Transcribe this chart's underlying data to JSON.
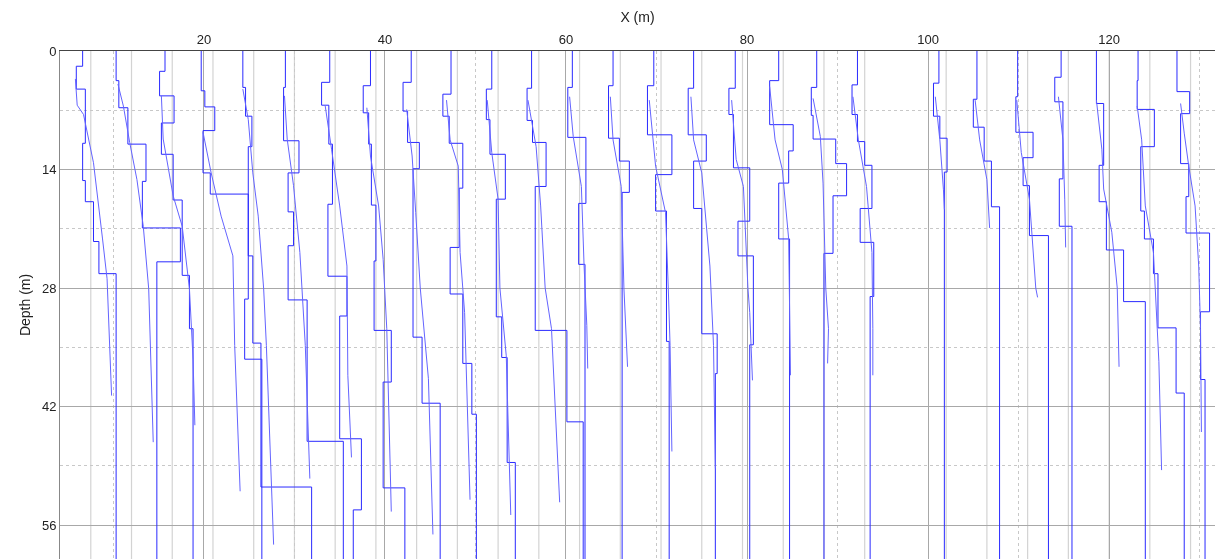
{
  "chart_data": {
    "type": "line",
    "xlabel": "X (m)",
    "ylabel": "Depth (m)",
    "xlim": [
      4.1,
      131.7
    ],
    "ylim": [
      60,
      0
    ],
    "xticks": [
      20,
      40,
      60,
      80,
      100,
      120,
      {
        "value": 10,
        "label": null
      },
      {
        "value": 30,
        "label": null
      },
      {
        "value": 50,
        "label": null
      },
      {
        "value": 70,
        "label": null
      },
      {
        "value": 90,
        "label": null
      },
      {
        "value": 110,
        "label": null
      },
      {
        "value": 130,
        "label": null
      }
    ],
    "yticks": [
      0,
      14,
      28,
      42,
      56,
      {
        "value": 7,
        "label": null
      },
      {
        "value": 21,
        "label": null
      },
      {
        "value": 35,
        "label": null
      },
      {
        "value": 49,
        "label": null
      }
    ],
    "grid": true,
    "ref_lines": [
      {
        "axis": "x",
        "value": 7.5,
        "color": "#d3d3d3"
      },
      {
        "axis": "x",
        "value": 12,
        "color": "#d3d3d3"
      },
      {
        "axis": "x",
        "value": 16.5,
        "color": "#d3d3d3"
      },
      {
        "axis": "x",
        "value": 21,
        "color": "#d3d3d3"
      },
      {
        "axis": "x",
        "value": 25.5,
        "color": "#d3d3d3"
      },
      {
        "axis": "x",
        "value": 30,
        "color": "#d3d3d3"
      },
      {
        "axis": "x",
        "value": 34.5,
        "color": "#d3d3d3"
      },
      {
        "axis": "x",
        "value": 39,
        "color": "#d3d3d3"
      },
      {
        "axis": "x",
        "value": 43.5,
        "color": "#d3d3d3"
      },
      {
        "axis": "x",
        "value": 48,
        "color": "#d3d3d3"
      },
      {
        "axis": "x",
        "value": 52.5,
        "color": "#d3d3d3"
      },
      {
        "axis": "x",
        "value": 57,
        "color": "#d3d3d3"
      },
      {
        "axis": "x",
        "value": 61.5,
        "color": "#d3d3d3"
      },
      {
        "axis": "x",
        "value": 66,
        "color": "#d3d3d3"
      },
      {
        "axis": "x",
        "value": 70.5,
        "color": "#d3d3d3"
      },
      {
        "axis": "x",
        "value": 75,
        "color": "#d3d3d3"
      },
      {
        "axis": "x",
        "value": 79.5,
        "color": "#d3d3d3"
      },
      {
        "axis": "x",
        "value": 84,
        "color": "#d3d3d3"
      },
      {
        "axis": "x",
        "value": 88.5,
        "color": "#d3d3d3"
      },
      {
        "axis": "x",
        "value": 93,
        "color": "#d3d3d3"
      },
      {
        "axis": "x",
        "value": 102,
        "color": "#d3d3d3"
      },
      {
        "axis": "x",
        "value": 106.5,
        "color": "#d3d3d3"
      },
      {
        "axis": "x",
        "value": 111,
        "color": "#d3d3d3"
      },
      {
        "axis": "x",
        "value": 115.5,
        "color": "#d3d3d3"
      },
      {
        "axis": "x",
        "value": 120,
        "color": "#d3d3d3"
      },
      {
        "axis": "x",
        "value": 124.5,
        "color": "#d3d3d3"
      },
      {
        "axis": "x",
        "value": 129,
        "color": "#d3d3d3"
      }
    ],
    "series": [
      {
        "color": "#2a2aff",
        "x": [
          6.6,
          6.6,
          5.9,
          5.9,
          6.9,
          6.9,
          6.6,
          6.6,
          6.9,
          6.9,
          7.8,
          7.8,
          8.4,
          8.4,
          10.3,
          10.3
        ],
        "values": [
          0,
          1.8,
          1.8,
          4.5,
          4.5,
          10.9,
          10.9,
          15.3,
          15.3,
          17.8,
          17.8,
          22.5,
          22.5,
          26.3,
          26.3,
          60
        ]
      },
      {
        "color": "#6464ff",
        "x": [
          5.8,
          6.0,
          6.7,
          7.8,
          8.8,
          9.3,
          9.8
        ],
        "values": [
          3.3,
          6.4,
          7.5,
          13.2,
          22.2,
          26.9,
          40.7
        ]
      },
      {
        "color": "#2a2aff",
        "x": [
          10.3,
          10.3,
          10.6,
          10.6,
          11.6,
          11.6,
          13.6,
          13.6,
          13.2,
          13.2,
          17.4,
          17.4,
          14.8,
          14.8
        ],
        "values": [
          0,
          3.5,
          3.5,
          6.7,
          6.7,
          11.0,
          11.0,
          15.4,
          15.4,
          20.9,
          20.9,
          24.9,
          24.9,
          60
        ]
      },
      {
        "color": "#6464ff",
        "x": [
          10.5,
          11.1,
          11.8,
          12.6,
          13.3,
          13.9,
          14.4
        ],
        "values": [
          3.9,
          6.5,
          10.8,
          15.2,
          20.7,
          28.1,
          46.2
        ]
      },
      {
        "color": "#2a2aff",
        "x": [
          15.7,
          15.7,
          15.1,
          15.1,
          16.7,
          16.7,
          15.3,
          15.3,
          16.6,
          16.6,
          17.6,
          17.6,
          18.4,
          18.4,
          18.8,
          18.8
        ],
        "values": [
          0,
          2.4,
          2.4,
          5.3,
          5.3,
          8.5,
          8.5,
          12.2,
          12.2,
          17.6,
          17.6,
          26.5,
          26.5,
          32.8,
          32.8,
          60
        ]
      },
      {
        "color": "#6464ff",
        "x": [
          15.3,
          15.5,
          16.6,
          17.6,
          18.4,
          18.8,
          19.0
        ],
        "values": [
          5.3,
          10.4,
          17.1,
          20.7,
          28.1,
          36.4,
          44.2
        ]
      },
      {
        "color": "#2a2aff",
        "x": [
          19.7,
          19.7,
          20.1,
          20.1,
          21.2,
          21.2,
          19.9,
          19.9,
          20.7,
          20.7,
          24.9,
          24.9,
          24.5,
          24.5,
          26.4,
          26.4
        ],
        "values": [
          0,
          4.7,
          4.7,
          6.6,
          6.6,
          9.4,
          9.4,
          14.4,
          14.4,
          16.9,
          16.9,
          29.3,
          29.3,
          36.4,
          36.4,
          60
        ]
      },
      {
        "color": "#6464ff",
        "x": [
          19.9,
          20.8,
          21.9,
          23.2,
          23.4,
          24.0
        ],
        "values": [
          9.6,
          14.4,
          19.5,
          24.2,
          34.8,
          52.0
        ]
      },
      {
        "color": "#2a2aff",
        "x": [
          24.3,
          24.3,
          24.6,
          24.6,
          25.3,
          25.3,
          24.9,
          24.9,
          25.4,
          25.4,
          26.3,
          26.3,
          31.9,
          31.9
        ],
        "values": [
          0,
          4.3,
          4.3,
          7.7,
          7.7,
          11.3,
          11.3,
          24.2,
          24.2,
          34.5,
          34.5,
          51.5,
          51.5,
          60
        ]
      },
      {
        "color": "#6464ff",
        "x": [
          24.3,
          24.9,
          25.4,
          26.0,
          26.6,
          26.9,
          27.7
        ],
        "values": [
          4.5,
          8.1,
          14.4,
          19.5,
          28.1,
          34.8,
          58.3
        ]
      },
      {
        "color": "#2a2aff",
        "x": [
          29.0,
          29.0,
          28.8,
          28.8,
          30.5,
          30.5,
          29.3,
          29.3,
          29.9,
          29.9,
          29.3,
          29.3,
          31.4,
          31.4,
          35.4,
          35.4
        ],
        "values": [
          0,
          4.3,
          4.3,
          10.6,
          10.6,
          14.4,
          14.4,
          19.0,
          19.0,
          23.0,
          23.0,
          29.4,
          29.4,
          46.1,
          46.1,
          60
        ]
      },
      {
        "color": "#6464ff",
        "x": [
          28.9,
          29.2,
          29.9,
          30.6,
          31.2,
          31.7
        ],
        "values": [
          5.3,
          10.4,
          15.9,
          23.8,
          34.8,
          50.5
        ]
      },
      {
        "color": "#2a2aff",
        "x": [
          33.9,
          33.9,
          33.0,
          33.0,
          33.8,
          33.8,
          34.2,
          34.2,
          33.7,
          33.7,
          35.8,
          35.8,
          35.0,
          35.0,
          37.4,
          37.4,
          36.5,
          36.5
        ],
        "values": [
          0,
          3.7,
          3.7,
          6.4,
          6.4,
          11.0,
          11.0,
          18.1,
          18.1,
          26.6,
          26.6,
          31.3,
          31.3,
          45.8,
          45.8,
          54.2,
          54.2,
          60
        ]
      },
      {
        "color": "#6464ff",
        "x": [
          33.4,
          34.1,
          35.0,
          35.8,
          35.9,
          36.3
        ],
        "values": [
          6.5,
          11.6,
          18.3,
          25.4,
          38.3,
          48.0
        ]
      },
      {
        "color": "#2a2aff",
        "x": [
          38.4,
          38.4,
          37.6,
          37.6,
          38.2,
          38.2,
          38.5,
          38.5,
          39.0,
          39.0,
          38.8,
          38.8,
          40.7,
          40.7,
          39.8,
          39.8,
          42.2,
          42.2
        ],
        "values": [
          0,
          4.1,
          4.1,
          7.3,
          7.3,
          11.0,
          11.0,
          18.2,
          18.2,
          24.8,
          24.8,
          33.0,
          33.0,
          39.1,
          39.1,
          51.6,
          51.6,
          60
        ]
      },
      {
        "color": "#6464ff",
        "x": [
          38.0,
          38.4,
          39.3,
          39.8,
          40.2,
          40.7
        ],
        "values": [
          6.7,
          12.4,
          18.3,
          24.6,
          32.8,
          54.4
        ]
      },
      {
        "color": "#2a2aff",
        "x": [
          42.9,
          42.9,
          42.0,
          42.0,
          42.5,
          42.5,
          43.8,
          43.8,
          43.1,
          43.1,
          44.1,
          44.1,
          46.1,
          46.1
        ],
        "values": [
          0,
          3.7,
          3.7,
          7.1,
          7.1,
          10.8,
          10.8,
          13.9,
          13.9,
          33.8,
          33.8,
          41.6,
          41.6,
          60
        ]
      },
      {
        "color": "#6464ff",
        "x": [
          42.4,
          43.0,
          43.4,
          43.9,
          44.8,
          45.3
        ],
        "values": [
          6.9,
          12.4,
          19.1,
          28.0,
          38.7,
          57.1
        ]
      },
      {
        "color": "#2a2aff",
        "x": [
          47.3,
          47.3,
          46.4,
          46.4,
          47.1,
          47.1,
          48.6,
          48.6,
          48.2,
          48.2,
          47.2,
          47.2,
          48.6,
          48.6,
          49.6,
          49.6,
          50.1,
          50.1
        ],
        "values": [
          0,
          5.1,
          5.1,
          7.7,
          7.7,
          10.9,
          10.9,
          16.2,
          16.2,
          23.2,
          23.2,
          28.7,
          28.7,
          36.9,
          36.9,
          42.9,
          42.9,
          60
        ]
      },
      {
        "color": "#6464ff",
        "x": [
          46.8,
          47.2,
          48.1,
          48.3,
          48.8,
          49.4
        ],
        "values": [
          5.8,
          10.5,
          13.6,
          23.8,
          30.9,
          53.0
        ]
      },
      {
        "color": "#2a2aff",
        "x": [
          51.8,
          51.8,
          51.2,
          51.2,
          51.6,
          51.6,
          53.3,
          53.3,
          52.3,
          52.3,
          52.9,
          52.9,
          53.5,
          53.5,
          54.4,
          54.4
        ],
        "values": [
          0,
          4.5,
          4.5,
          8.1,
          8.1,
          12.2,
          12.2,
          17.5,
          17.5,
          31.4,
          31.4,
          36.2,
          36.2,
          48.6,
          48.6,
          60
        ]
      },
      {
        "color": "#6464ff",
        "x": [
          51.3,
          51.8,
          52.5,
          52.7,
          53.4,
          53.9
        ],
        "values": [
          5.8,
          12.0,
          17.5,
          28.0,
          36.0,
          54.8
        ]
      },
      {
        "color": "#2a2aff",
        "x": [
          56.2,
          56.2,
          55.7,
          55.7,
          56.3,
          56.3,
          57.8,
          57.8,
          56.6,
          56.6,
          60.1,
          60.1,
          61.9,
          61.9
        ],
        "values": [
          0,
          4.4,
          4.4,
          8.2,
          8.2,
          10.8,
          10.8,
          16.0,
          16.0,
          33.0,
          33.0,
          43.8,
          43.8,
          60
        ]
      },
      {
        "color": "#6464ff",
        "x": [
          55.8,
          56.7,
          57.2,
          57.7,
          58.4,
          59.3
        ],
        "values": [
          5.8,
          11.3,
          18.3,
          28.0,
          32.8,
          53.3
        ]
      },
      {
        "color": "#2a2aff",
        "x": [
          60.7,
          60.7,
          60.2,
          60.2,
          62.2,
          62.2,
          61.4,
          61.4,
          62.1,
          62.1
        ],
        "values": [
          0,
          4.3,
          4.3,
          10.2,
          10.2,
          18.0,
          18.0,
          25.2,
          25.2,
          60
        ]
      },
      {
        "color": "#6464ff",
        "x": [
          60.4,
          60.8,
          61.7,
          62.0,
          62.3,
          62.4
        ],
        "values": [
          5.4,
          10.1,
          16.0,
          25.4,
          32.4,
          37.5
        ]
      },
      {
        "color": "#2a2aff",
        "x": [
          65.2,
          65.2,
          64.7,
          64.7,
          65.9,
          65.9,
          67.0,
          67.0,
          66.2,
          66.2
        ],
        "values": [
          0,
          4.1,
          4.1,
          10.3,
          10.3,
          13.0,
          13.0,
          16.7,
          16.7,
          60
        ]
      },
      {
        "color": "#6464ff",
        "x": [
          64.9,
          65.2,
          66.1,
          66.4,
          66.8
        ],
        "values": [
          5.4,
          10.5,
          16.0,
          28.0,
          37.3
        ]
      },
      {
        "color": "#2a2aff",
        "x": [
          69.7,
          69.7,
          69.0,
          69.0,
          71.7,
          71.7,
          69.9,
          69.9,
          71.1,
          71.1,
          71.4,
          71.4
        ],
        "values": [
          0,
          4.1,
          4.1,
          9.9,
          9.9,
          14.6,
          14.6,
          18.9,
          18.9,
          34.3,
          34.3,
          60
        ]
      },
      {
        "color": "#6464ff",
        "x": [
          69.2,
          69.9,
          71.0,
          71.3,
          71.5,
          71.7
        ],
        "values": [
          5.8,
          13.6,
          19.1,
          28.0,
          34.8,
          47.3
        ]
      },
      {
        "color": "#2a2aff",
        "x": [
          74.1,
          74.1,
          73.5,
          73.5,
          75.5,
          75.5,
          74.1,
          74.1,
          75.0,
          75.0,
          76.7,
          76.7,
          76.5,
          76.5
        ],
        "values": [
          0,
          4.4,
          4.4,
          9.9,
          9.9,
          13.0,
          13.0,
          18.6,
          18.6,
          33.4,
          33.4,
          38.1,
          38.1,
          60
        ]
      },
      {
        "color": "#6464ff",
        "x": [
          73.8,
          74.1,
          75.0,
          75.9,
          76.3,
          76.5
        ],
        "values": [
          5.4,
          10.5,
          14.4,
          25.4,
          34.8,
          49.3
        ]
      },
      {
        "color": "#2a2aff",
        "x": [
          78.7,
          78.7,
          78.0,
          78.0,
          78.5,
          78.5,
          80.3,
          80.3,
          79.0,
          79.0,
          80.7,
          80.7,
          80.3,
          80.3
        ],
        "values": [
          0,
          4.4,
          4.4,
          7.5,
          7.5,
          13.8,
          13.8,
          20.1,
          20.1,
          24.2,
          24.2,
          34.7,
          34.7,
          60
        ]
      },
      {
        "color": "#6464ff",
        "x": [
          78.3,
          78.8,
          79.6,
          80.1,
          80.3,
          80.6
        ],
        "values": [
          5.8,
          12.8,
          16.0,
          28.0,
          30.9,
          38.9
        ]
      },
      {
        "color": "#2a2aff",
        "x": [
          83.5,
          83.5,
          82.5,
          82.5,
          85.1,
          85.1,
          84.6,
          84.6,
          83.5,
          83.5,
          84.7,
          84.7
        ],
        "values": [
          0,
          3.5,
          3.5,
          8.7,
          8.7,
          11.8,
          11.8,
          15.6,
          15.6,
          22.2,
          22.2,
          60
        ]
      },
      {
        "color": "#6464ff",
        "x": [
          82.5,
          83.1,
          83.9,
          84.6,
          84.8
        ],
        "values": [
          4.2,
          10.5,
          14.0,
          22.2,
          38.3
        ]
      },
      {
        "color": "#2a2aff",
        "x": [
          87.7,
          87.7,
          87.1,
          87.1,
          87.3,
          87.3,
          89.8,
          89.8,
          91.0,
          91.0,
          89.5,
          89.5,
          88.5,
          88.5
        ],
        "values": [
          0,
          4.3,
          4.3,
          7.6,
          7.6,
          10.4,
          10.4,
          13.3,
          13.3,
          17.1,
          17.1,
          23.9,
          23.9,
          60
        ]
      },
      {
        "color": "#6464ff",
        "x": [
          87.3,
          88.1,
          88.4,
          88.7,
          89.0,
          88.9
        ],
        "values": [
          5.6,
          10.1,
          15.6,
          28.0,
          32.8,
          36.9
        ]
      },
      {
        "color": "#2a2aff",
        "x": [
          92.2,
          92.2,
          91.6,
          91.6,
          92.2,
          92.2,
          93.0,
          93.0,
          93.8,
          93.8,
          92.5,
          92.5,
          94.0,
          94.0,
          93.6,
          93.6
        ],
        "values": [
          0,
          4.0,
          4.0,
          7.5,
          7.5,
          10.7,
          10.7,
          13.5,
          13.5,
          18.6,
          18.6,
          22.6,
          22.6,
          29.0,
          29.0,
          60
        ]
      },
      {
        "color": "#6464ff",
        "x": [
          91.7,
          92.3,
          93.2,
          93.8,
          93.9,
          93.9
        ],
        "values": [
          5.4,
          10.5,
          16.0,
          23.8,
          32.8,
          38.3
        ]
      },
      {
        "color": "#2a2aff",
        "x": [
          101.2,
          101.2,
          100.6,
          100.6,
          101.3,
          101.3,
          102.1,
          102.1,
          101.8,
          101.8
        ],
        "values": [
          0,
          3.8,
          3.8,
          7.7,
          7.7,
          10.3,
          10.3,
          14.3,
          14.3,
          60
        ]
      },
      {
        "color": "#6464ff",
        "x": [
          100.8,
          101.3,
          101.7,
          101.8
        ],
        "values": [
          5.4,
          10.5,
          16.4,
          18.7
        ]
      },
      {
        "color": "#2a2aff",
        "x": [
          105.4,
          105.4,
          105.0,
          105.0,
          106.2,
          106.2,
          107.0,
          107.0,
          107.9,
          107.9
        ],
        "values": [
          0,
          5.7,
          5.7,
          9.0,
          9.0,
          13.0,
          13.0,
          18.4,
          18.4,
          60
        ]
      },
      {
        "color": "#6464ff",
        "x": [
          105.2,
          105.7,
          106.5,
          106.8
        ],
        "values": [
          5.8,
          10.5,
          15.2,
          20.9
        ]
      },
      {
        "color": "#2a2aff",
        "x": [
          109.9,
          109.9,
          109.7,
          109.7,
          111.6,
          111.6,
          110.5,
          110.5,
          111.2,
          111.2,
          113.3,
          113.3
        ],
        "values": [
          0,
          5.4,
          5.4,
          9.6,
          9.6,
          12.6,
          12.6,
          15.9,
          15.9,
          21.8,
          21.8,
          60
        ]
      },
      {
        "color": "#6464ff",
        "x": [
          109.8,
          110.3,
          111.2,
          111.9,
          112.1
        ],
        "values": [
          5.8,
          12.0,
          17.5,
          28.0,
          29.1
        ]
      },
      {
        "color": "#2a2aff",
        "x": [
          114.7,
          114.7,
          114.0,
          114.0,
          114.9,
          114.9,
          114.5,
          114.5,
          115.9,
          115.9
        ],
        "values": [
          0,
          3.1,
          3.1,
          6.0,
          6.0,
          15.1,
          15.1,
          20.7,
          20.7,
          60
        ]
      },
      {
        "color": "#6464ff",
        "x": [
          114.4,
          114.9,
          115.1,
          115.2
        ],
        "values": [
          5.4,
          10.5,
          17.5,
          23.2
        ]
      },
      {
        "color": "#2a2aff",
        "x": [
          118.6,
          118.6,
          119.4,
          119.4,
          118.9,
          118.9,
          119.7,
          119.7,
          121.6,
          121.6,
          124.0,
          124.0
        ],
        "values": [
          0,
          6.2,
          6.2,
          13.5,
          13.5,
          17.8,
          17.8,
          23.5,
          23.5,
          29.6,
          29.6,
          60
        ]
      },
      {
        "color": "#6464ff",
        "x": [
          118.6,
          119.2,
          119.4,
          120.3,
          120.9,
          121.1
        ],
        "values": [
          5.8,
          11.6,
          16.3,
          21.4,
          28.0,
          37.3
        ]
      },
      {
        "color": "#2a2aff",
        "x": [
          123.2,
          123.2,
          123.1,
          123.1,
          125.0,
          125.0,
          123.5,
          123.5,
          123.9,
          123.9,
          124.9,
          124.9,
          125.4,
          125.4,
          127.4,
          127.4,
          128.3,
          128.3
        ],
        "values": [
          0,
          3.5,
          3.5,
          6.9,
          6.9,
          11.3,
          11.3,
          18.9,
          18.9,
          22.2,
          22.2,
          26.3,
          26.3,
          32.7,
          32.7,
          40.4,
          40.4,
          60
        ]
      },
      {
        "color": "#6464ff",
        "x": [
          123.1,
          123.6,
          124.0,
          124.9,
          125.5,
          125.8
        ],
        "values": [
          6.5,
          10.5,
          18.3,
          23.8,
          36.7,
          49.5
        ]
      },
      {
        "color": "#2a2aff",
        "x": [
          127.5,
          127.5,
          128.9,
          128.9,
          127.9,
          127.9,
          128.8,
          128.8,
          128.5,
          128.5,
          131.1,
          131.1,
          130.1,
          130.1,
          130.6,
          130.6
        ],
        "values": [
          0,
          4.8,
          4.8,
          7.4,
          7.4,
          13.3,
          13.3,
          17.2,
          17.2,
          21.5,
          21.5,
          30.8,
          30.8,
          38.8,
          38.8,
          60
        ]
      },
      {
        "color": "#6464ff",
        "x": [
          127.9,
          128.3,
          128.8,
          129.5,
          129.9,
          130.1,
          130.2
        ],
        "values": [
          6.2,
          9.7,
          13.6,
          18.3,
          25.4,
          32.8,
          45.0
        ]
      }
    ]
  }
}
